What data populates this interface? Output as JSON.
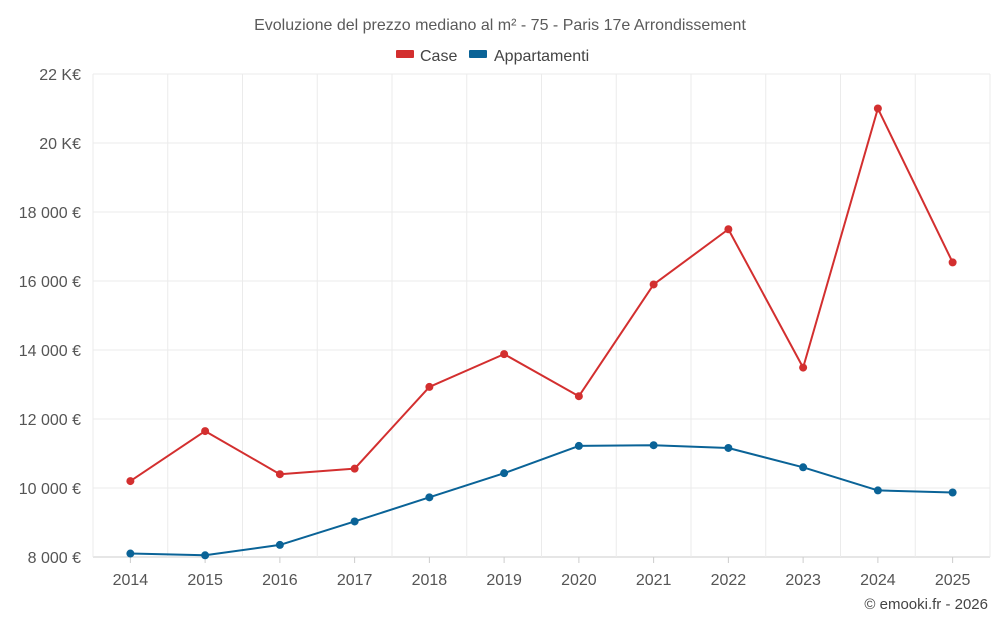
{
  "chart_data": {
    "type": "line",
    "title": "Evoluzione del prezzo mediano al m² - 75 - Paris 17e Arrondissement",
    "categories": [
      "2014",
      "2015",
      "2016",
      "2017",
      "2018",
      "2019",
      "2020",
      "2021",
      "2022",
      "2023",
      "2024",
      "2025"
    ],
    "series": [
      {
        "name": "Case",
        "color": "#d32f2f",
        "values": [
          10200,
          11650,
          10400,
          10560,
          12930,
          13880,
          12660,
          15900,
          17500,
          13490,
          21000,
          16540
        ]
      },
      {
        "name": "Appartamenti",
        "color": "#0a6397",
        "values": [
          8100,
          8050,
          8350,
          9030,
          9730,
          10430,
          11220,
          11240,
          11160,
          10600,
          9930,
          9870
        ]
      }
    ],
    "ylim": [
      8000,
      22000
    ],
    "yticks": [
      8000,
      10000,
      12000,
      14000,
      16000,
      18000,
      20000,
      22000
    ],
    "ytick_labels": [
      "8 000 €",
      "10 000 €",
      "12 000 €",
      "14 000 €",
      "16 000 €",
      "18 000 €",
      "20 K€",
      "22 K€"
    ],
    "grid": true,
    "legend_position": "top-center",
    "credit": "© emooki.fr - 2026"
  }
}
